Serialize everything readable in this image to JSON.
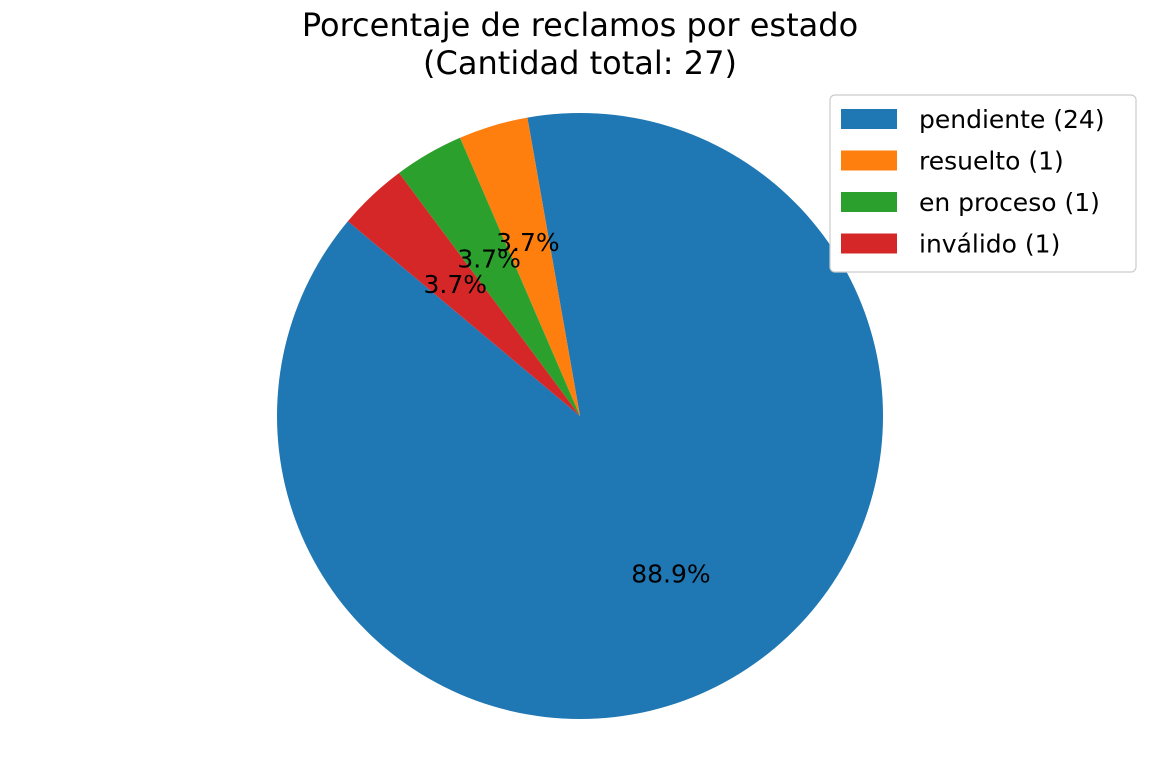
{
  "chart_data": {
    "type": "pie",
    "title": "Porcentaje de reclamos por estado",
    "subtitle": "(Cantidad total: 27)",
    "categories": [
      "pendiente",
      "resuelto",
      "en proceso",
      "inválido"
    ],
    "values": [
      24,
      1,
      1,
      1
    ],
    "percent_labels": [
      "88.9%",
      "3.7%",
      "3.7%",
      "3.7%"
    ],
    "legend_labels": [
      "pendiente (24)",
      "resuelto (1)",
      "en proceso (1)",
      "inválido (1)"
    ],
    "colors": [
      "#1f77b4",
      "#ff7f0e",
      "#2ca02c",
      "#d62728"
    ],
    "legend_position": "top-right",
    "start_angle_deg": 140
  }
}
